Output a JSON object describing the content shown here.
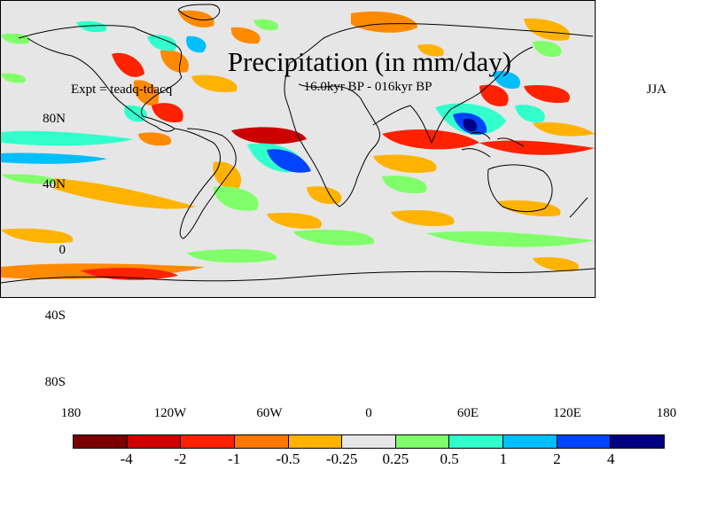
{
  "header": {
    "title": "Precipitation (in mm/day)",
    "subtitle": "16.0kyr BP - 016kyr BP",
    "experiment": "Expt = teadq-tdacq",
    "season": "JJA"
  },
  "axes": {
    "lat_labels": [
      "80N",
      "40N",
      "0",
      "40S",
      "80S"
    ],
    "lon_labels": [
      "180",
      "120W",
      "60W",
      "0",
      "60E",
      "120E",
      "180"
    ]
  },
  "colorbar": {
    "colors": [
      "#7a0000",
      "#cc0000",
      "#ff2200",
      "#ff7700",
      "#ffb300",
      "#e6e6e6",
      "#80ff6a",
      "#33ffcc",
      "#00bfff",
      "#0044ff",
      "#000080"
    ],
    "labels": [
      "-4",
      "-2",
      "-1",
      "-0.5",
      "-0.25",
      "0.25",
      "0.5",
      "1",
      "2",
      "4"
    ]
  },
  "map_colors": {
    "background": "#e6e6e6",
    "dark_red": "#cc0000",
    "red": "#ff2200",
    "orange": "#ff8a00",
    "yellow_orange": "#ffb300",
    "light_green": "#80ff6a",
    "cyan": "#33ffcc",
    "light_blue": "#00bfff",
    "blue": "#0044ff",
    "dark_blue": "#000080",
    "coast": "#000000"
  }
}
